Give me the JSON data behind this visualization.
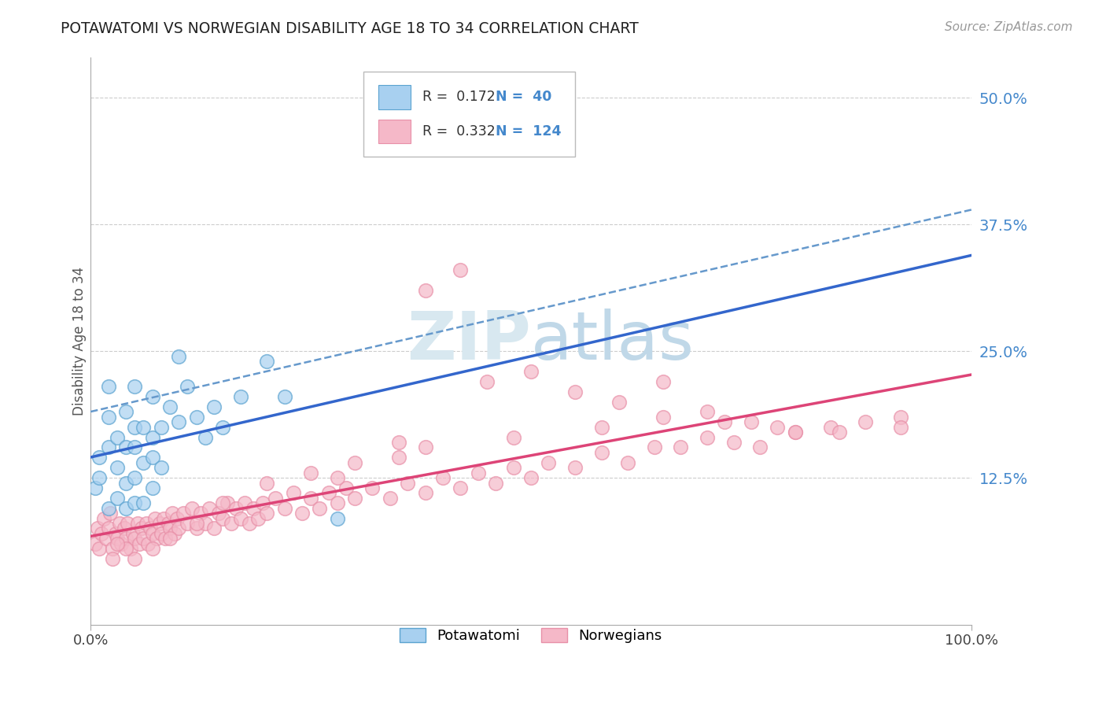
{
  "title": "POTAWATOMI VS NORWEGIAN DISABILITY AGE 18 TO 34 CORRELATION CHART",
  "source_text": "Source: ZipAtlas.com",
  "ylabel": "Disability Age 18 to 34",
  "xlim": [
    0.0,
    1.0
  ],
  "ylim": [
    -0.02,
    0.54
  ],
  "xtick_positions": [
    0.0,
    1.0
  ],
  "xtick_labels": [
    "0.0%",
    "100.0%"
  ],
  "ytick_values": [
    0.125,
    0.25,
    0.375,
    0.5
  ],
  "ytick_labels": [
    "12.5%",
    "25.0%",
    "37.5%",
    "50.0%"
  ],
  "legend_blue_r": "R =  0.172",
  "legend_blue_n": "N =  40",
  "legend_pink_r": "R =  0.332",
  "legend_pink_n": "N =  124",
  "blue_fill_color": "#a8d0f0",
  "blue_edge_color": "#5ba3d0",
  "pink_fill_color": "#f5b8c8",
  "pink_edge_color": "#e890a8",
  "blue_line_color": "#3366cc",
  "blue_dash_color": "#6699cc",
  "pink_line_color": "#dd4477",
  "grid_color": "#cccccc",
  "watermark_color": "#d8e8f0",
  "ytick_color": "#4488cc",
  "blue_scatter_x": [
    0.005,
    0.01,
    0.01,
    0.02,
    0.02,
    0.02,
    0.02,
    0.03,
    0.03,
    0.03,
    0.04,
    0.04,
    0.04,
    0.04,
    0.05,
    0.05,
    0.05,
    0.05,
    0.05,
    0.06,
    0.06,
    0.06,
    0.07,
    0.07,
    0.07,
    0.07,
    0.08,
    0.08,
    0.09,
    0.1,
    0.1,
    0.11,
    0.12,
    0.13,
    0.14,
    0.15,
    0.17,
    0.2,
    0.22,
    0.28
  ],
  "blue_scatter_y": [
    0.115,
    0.125,
    0.145,
    0.095,
    0.155,
    0.185,
    0.215,
    0.105,
    0.135,
    0.165,
    0.095,
    0.12,
    0.155,
    0.19,
    0.1,
    0.125,
    0.155,
    0.175,
    0.215,
    0.1,
    0.14,
    0.175,
    0.115,
    0.145,
    0.165,
    0.205,
    0.135,
    0.175,
    0.195,
    0.245,
    0.18,
    0.215,
    0.185,
    0.165,
    0.195,
    0.175,
    0.205,
    0.24,
    0.205,
    0.085
  ],
  "pink_scatter_x": [
    0.005,
    0.008,
    0.01,
    0.012,
    0.015,
    0.018,
    0.02,
    0.022,
    0.025,
    0.028,
    0.03,
    0.033,
    0.035,
    0.038,
    0.04,
    0.042,
    0.045,
    0.048,
    0.05,
    0.053,
    0.055,
    0.058,
    0.06,
    0.063,
    0.065,
    0.068,
    0.07,
    0.073,
    0.075,
    0.078,
    0.08,
    0.083,
    0.085,
    0.088,
    0.09,
    0.093,
    0.095,
    0.098,
    0.1,
    0.105,
    0.11,
    0.115,
    0.12,
    0.125,
    0.13,
    0.135,
    0.14,
    0.145,
    0.15,
    0.155,
    0.16,
    0.165,
    0.17,
    0.175,
    0.18,
    0.185,
    0.19,
    0.195,
    0.2,
    0.21,
    0.22,
    0.23,
    0.24,
    0.25,
    0.26,
    0.27,
    0.28,
    0.29,
    0.3,
    0.32,
    0.34,
    0.36,
    0.38,
    0.4,
    0.42,
    0.44,
    0.46,
    0.48,
    0.5,
    0.52,
    0.55,
    0.58,
    0.61,
    0.64,
    0.67,
    0.7,
    0.73,
    0.76,
    0.8,
    0.84,
    0.88,
    0.92,
    0.38,
    0.42,
    0.5,
    0.55,
    0.6,
    0.65,
    0.7,
    0.75,
    0.8,
    0.45,
    0.35,
    0.3,
    0.25,
    0.2,
    0.15,
    0.12,
    0.09,
    0.07,
    0.05,
    0.04,
    0.03,
    0.025,
    0.38,
    0.48,
    0.58,
    0.65,
    0.72,
    0.78,
    0.85,
    0.92,
    0.35,
    0.28
  ],
  "pink_scatter_y": [
    0.06,
    0.075,
    0.055,
    0.07,
    0.085,
    0.065,
    0.075,
    0.09,
    0.055,
    0.07,
    0.065,
    0.08,
    0.06,
    0.075,
    0.065,
    0.08,
    0.055,
    0.07,
    0.065,
    0.08,
    0.06,
    0.075,
    0.065,
    0.08,
    0.06,
    0.075,
    0.07,
    0.085,
    0.065,
    0.08,
    0.07,
    0.085,
    0.065,
    0.08,
    0.075,
    0.09,
    0.07,
    0.085,
    0.075,
    0.09,
    0.08,
    0.095,
    0.075,
    0.09,
    0.08,
    0.095,
    0.075,
    0.09,
    0.085,
    0.1,
    0.08,
    0.095,
    0.085,
    0.1,
    0.08,
    0.095,
    0.085,
    0.1,
    0.09,
    0.105,
    0.095,
    0.11,
    0.09,
    0.105,
    0.095,
    0.11,
    0.1,
    0.115,
    0.105,
    0.115,
    0.105,
    0.12,
    0.11,
    0.125,
    0.115,
    0.13,
    0.12,
    0.135,
    0.125,
    0.14,
    0.135,
    0.15,
    0.14,
    0.155,
    0.155,
    0.165,
    0.16,
    0.155,
    0.17,
    0.175,
    0.18,
    0.185,
    0.31,
    0.33,
    0.23,
    0.21,
    0.2,
    0.22,
    0.19,
    0.18,
    0.17,
    0.22,
    0.16,
    0.14,
    0.13,
    0.12,
    0.1,
    0.08,
    0.065,
    0.055,
    0.045,
    0.055,
    0.06,
    0.045,
    0.155,
    0.165,
    0.175,
    0.185,
    0.18,
    0.175,
    0.17,
    0.175,
    0.145,
    0.125
  ]
}
